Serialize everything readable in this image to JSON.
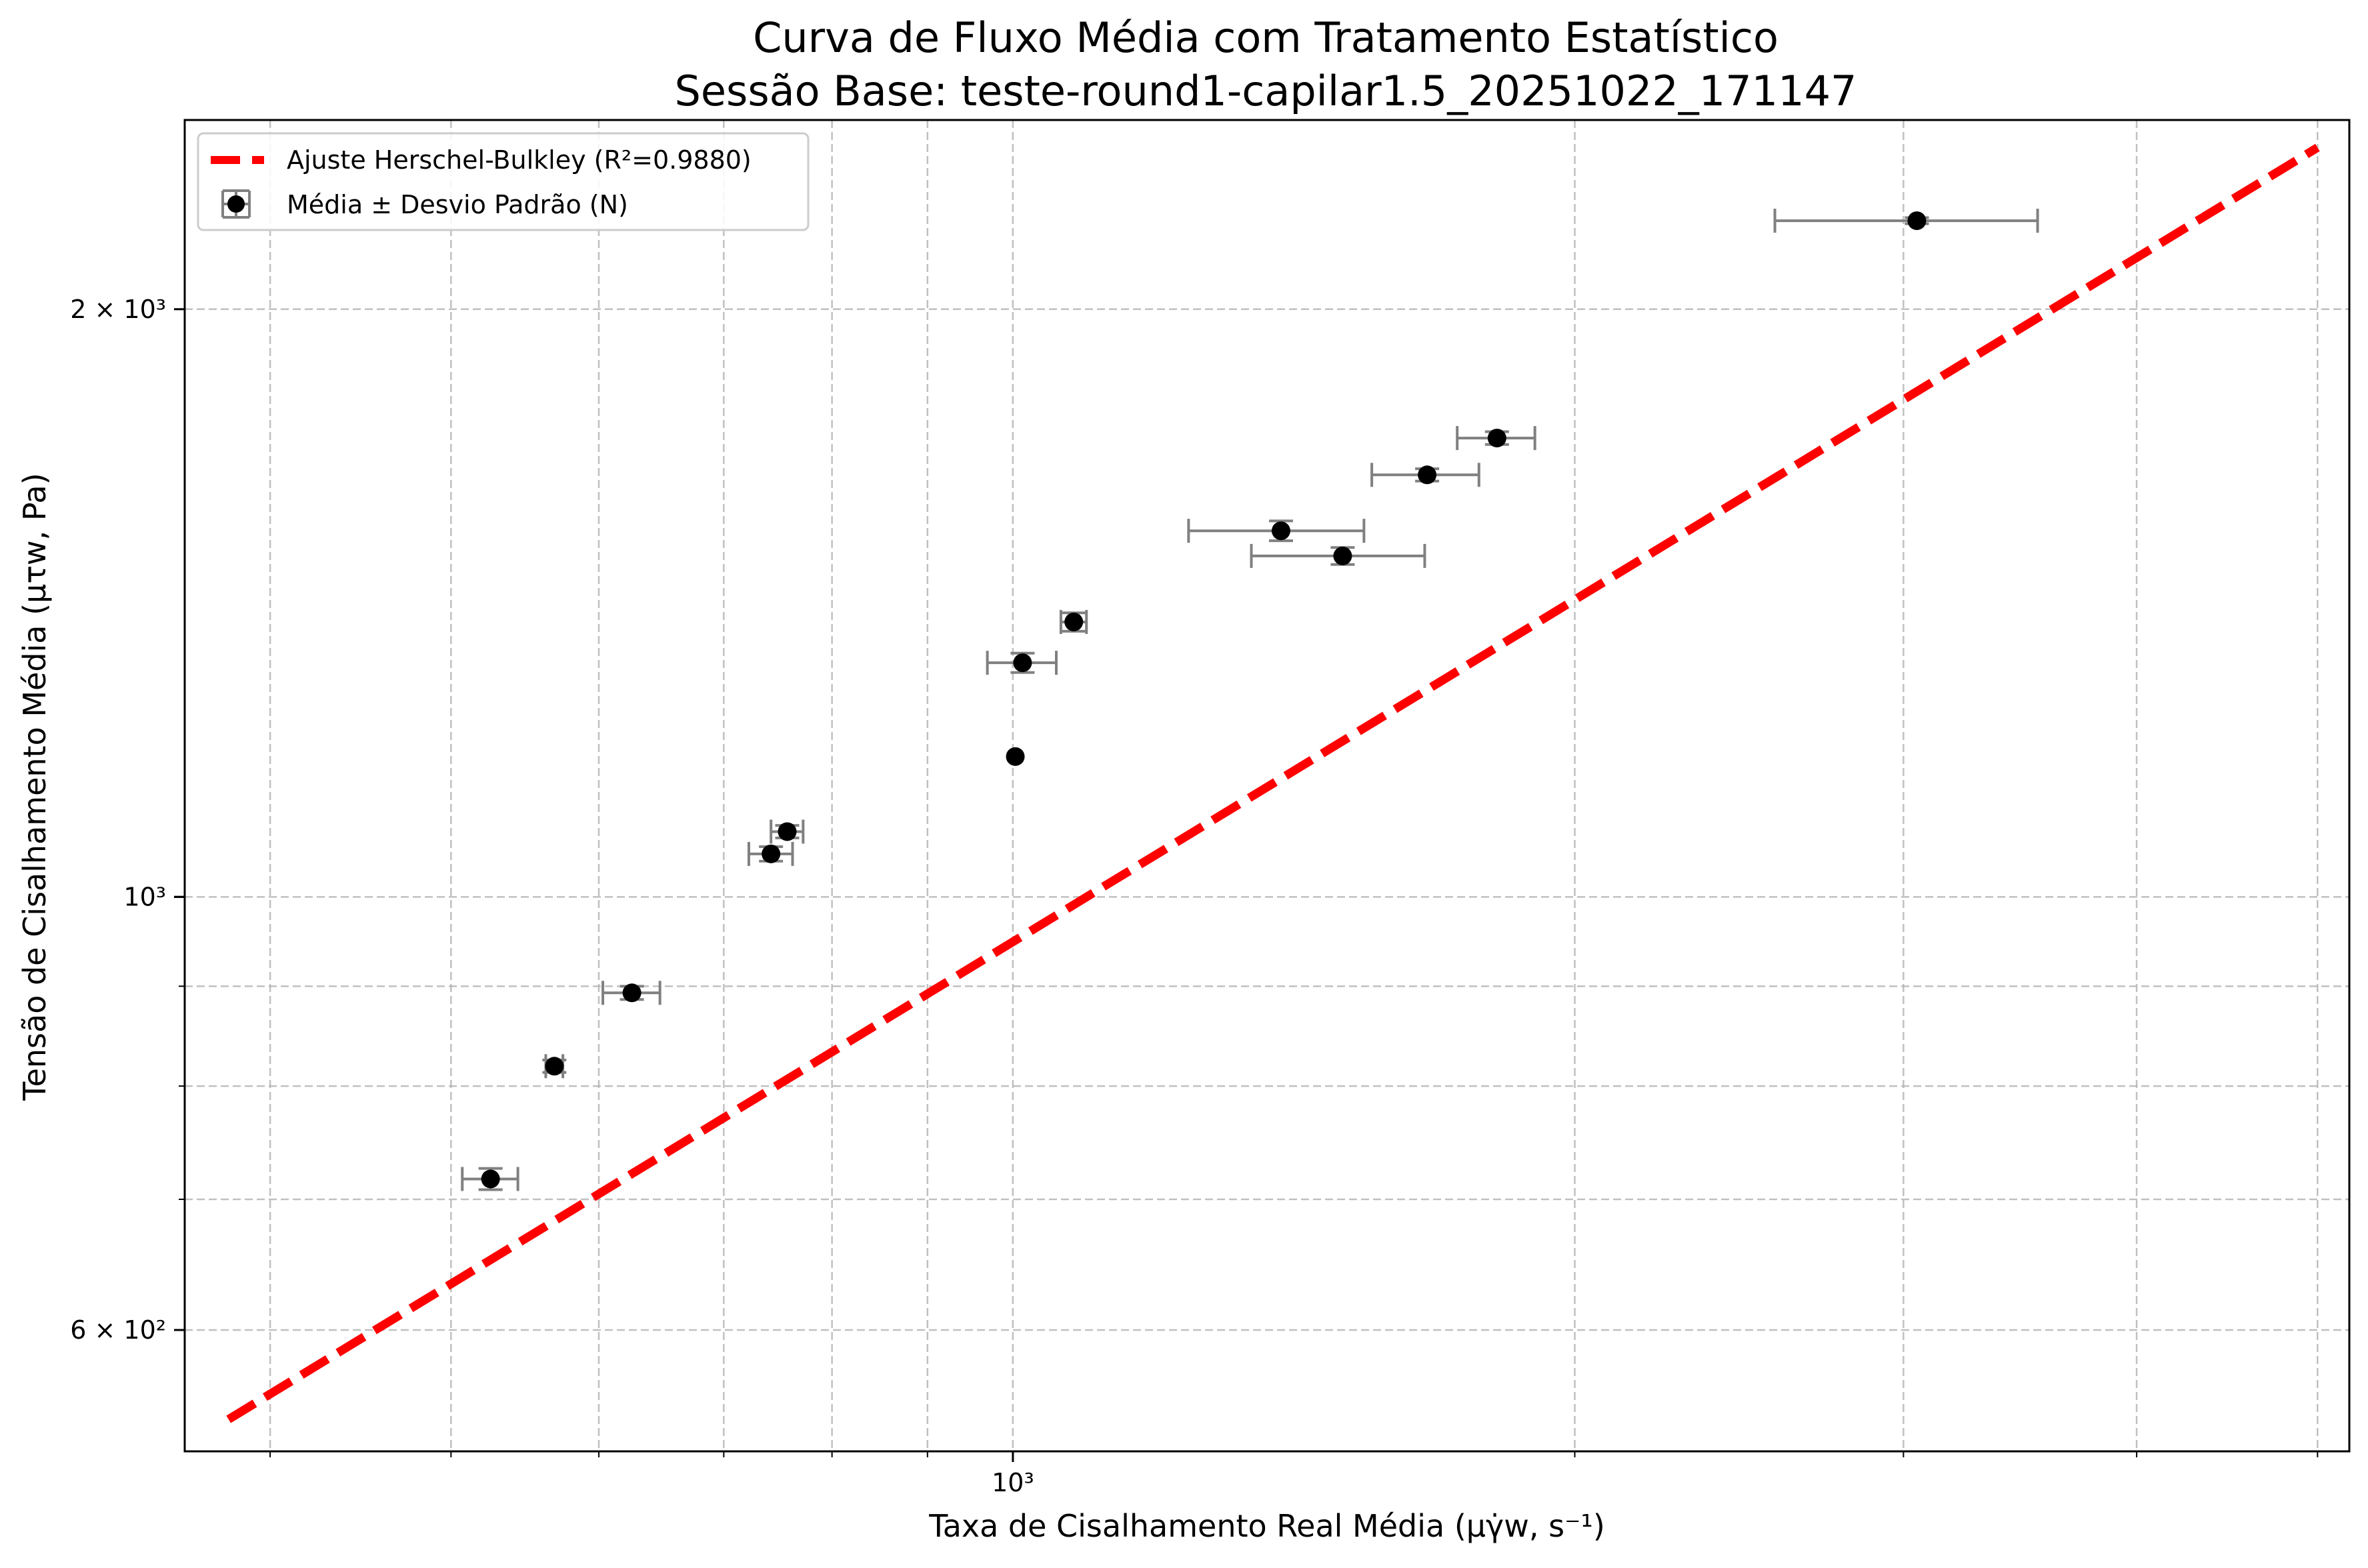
{
  "chart_data": {
    "type": "scatter",
    "title": "Curva de Fluxo Média com Tratamento Estatístico",
    "subtitle": "Sessão Base: teste-round1-capilar1.5_20251022_171147",
    "xlabel": "Taxa de Cisalhamento Real Média (μγ̇w, s⁻¹)",
    "ylabel": "Tensão de Cisalhamento Média (μτw, Pa)",
    "xscale": "log",
    "yscale": "log",
    "xlim": [
      360,
      5200
    ],
    "ylim": [
      520,
      2500
    ],
    "x_ticks": [
      {
        "value": 1000,
        "label": "10³"
      }
    ],
    "y_ticks": [
      {
        "value": 600,
        "label": "6 × 10²"
      },
      {
        "value": 1000,
        "label": "10³"
      },
      {
        "value": 2000,
        "label": "2 × 10³"
      }
    ],
    "grid": true,
    "legend_position": "upper-left",
    "series": [
      {
        "name": "Ajuste Herschel-Bulkley (R²=0.9880)",
        "kind": "fit-line",
        "color": "#ff0000",
        "x": [
          380,
          5000
        ],
        "y": [
          540,
          2420
        ]
      },
      {
        "name": "Média ± Desvio Padrão (N)",
        "kind": "errorbar",
        "color": "#000000",
        "errorbar_color": "#808080",
        "points": [
          {
            "x": 525,
            "y": 717,
            "xerr": 18,
            "yerr": 9
          },
          {
            "x": 568,
            "y": 819,
            "xerr": 6,
            "yerr": 6
          },
          {
            "x": 625,
            "y": 893,
            "xerr": 22,
            "yerr": 7
          },
          {
            "x": 742,
            "y": 1052,
            "xerr": 20,
            "yerr": 9
          },
          {
            "x": 757,
            "y": 1080,
            "xerr": 15,
            "yerr": 8
          },
          {
            "x": 1003,
            "y": 1180,
            "xerr": 0,
            "yerr": 0
          },
          {
            "x": 1012,
            "y": 1318,
            "xerr": 43,
            "yerr": 15
          },
          {
            "x": 1078,
            "y": 1383,
            "xerr": 17,
            "yerr": 15
          },
          {
            "x": 1392,
            "y": 1540,
            "xerr": 150,
            "yerr": 18
          },
          {
            "x": 1502,
            "y": 1495,
            "xerr": 160,
            "yerr": 15
          },
          {
            "x": 1667,
            "y": 1645,
            "xerr": 110,
            "yerr": 12
          },
          {
            "x": 1817,
            "y": 1718,
            "xerr": 87,
            "yerr": 13
          },
          {
            "x": 3050,
            "y": 2220,
            "xerr": 490,
            "yerr": 8
          }
        ]
      }
    ]
  }
}
